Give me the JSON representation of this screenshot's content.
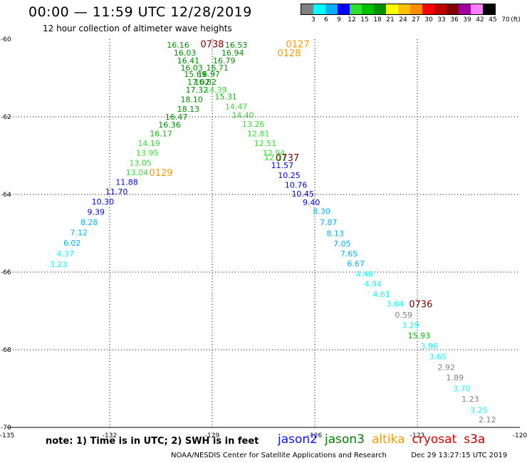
{
  "header": {
    "title": "00:00 — 11:59 UTC 12/28/2019",
    "subtitle": "12 hour collection of altimeter wave heights"
  },
  "legend": {
    "colors": [
      "#808080",
      "#00ffff",
      "#00b0ff",
      "#0000ff",
      "#30e030",
      "#00c000",
      "#009000",
      "#ffff00",
      "#ffc000",
      "#ff8c00",
      "#ff0000",
      "#c00000",
      "#800000",
      "#a000a0",
      "#ff80ff",
      "#000000"
    ],
    "labels": [
      "3",
      "6",
      "9",
      "12",
      "15",
      "18",
      "21",
      "24",
      "27",
      "30",
      "33",
      "36",
      "39",
      "42",
      "45",
      "70",
      "(ft)"
    ]
  },
  "footer": {
    "note": "note: 1) Time is in UTC; 2) SWH is in feet",
    "satellites": [
      {
        "name": "jason2",
        "color": "#1010ff"
      },
      {
        "name": "jason3",
        "color": "#008000"
      },
      {
        "name": "altika",
        "color": "#ff9900"
      },
      {
        "name": "cryosat",
        "color": "#e00000"
      },
      {
        "name": "s3a",
        "color": "#c00000"
      }
    ],
    "credit": "NOAA/NESDIS Center for Satellite Applications and Research",
    "timestamp": "Dec 29 13:27:15 UTC 2019"
  },
  "chart_data": {
    "type": "scatter",
    "xlim": [
      -135,
      -120
    ],
    "ylim": [
      -70,
      -60
    ],
    "x_ticks": [
      -135,
      -132,
      -129,
      -126,
      -123,
      -120
    ],
    "y_ticks": [
      -60,
      -62,
      -64,
      -66,
      -68,
      -70
    ],
    "x_tick_labels": [
      "-135",
      "-132",
      "-129",
      "-126",
      "-123",
      "-120"
    ],
    "y_tick_labels": [
      "-60",
      "-62",
      "-64",
      "-66",
      "-68",
      "-70"
    ],
    "grid": true,
    "points": [
      {
        "x": -130.0,
        "y": -60.15,
        "v": "16.16",
        "c": "#009000"
      },
      {
        "x": -129.8,
        "y": -60.35,
        "v": "16.03",
        "c": "#009000"
      },
      {
        "x": -129.7,
        "y": -60.55,
        "v": "16.41",
        "c": "#009000"
      },
      {
        "x": -129.6,
        "y": -60.73,
        "v": "16.03",
        "c": "#009000"
      },
      {
        "x": -129.5,
        "y": -60.9,
        "v": "15.69",
        "c": "#009000"
      },
      {
        "x": -129.4,
        "y": -61.1,
        "v": "17.02",
        "c": "#009000"
      },
      {
        "x": -129.45,
        "y": -61.3,
        "v": "17.32",
        "c": "#009000"
      },
      {
        "x": -129.6,
        "y": -61.55,
        "v": "18.10",
        "c": "#009000"
      },
      {
        "x": -129.7,
        "y": -61.8,
        "v": "18.13",
        "c": "#009000"
      },
      {
        "x": -130.05,
        "y": -62.0,
        "v": "16.47",
        "c": "#009000"
      },
      {
        "x": -130.25,
        "y": -62.2,
        "v": "16.36",
        "c": "#009000"
      },
      {
        "x": -130.5,
        "y": -62.43,
        "v": "16.17",
        "c": "#00c000"
      },
      {
        "x": -130.85,
        "y": -62.68,
        "v": "14.19",
        "c": "#30e030"
      },
      {
        "x": -130.9,
        "y": -62.93,
        "v": "13.95",
        "c": "#30e030"
      },
      {
        "x": -131.1,
        "y": -63.18,
        "v": "13.05",
        "c": "#30e030"
      },
      {
        "x": -131.2,
        "y": -63.43,
        "v": "13.04",
        "c": "#30e030"
      },
      {
        "x": -131.5,
        "y": -63.68,
        "v": "11.88",
        "c": "#0000ff"
      },
      {
        "x": -131.8,
        "y": -63.93,
        "v": "11.70",
        "c": "#0000ff"
      },
      {
        "x": -132.2,
        "y": -64.18,
        "v": "10.30",
        "c": "#0000ff"
      },
      {
        "x": -132.4,
        "y": -64.45,
        "v": "9.39",
        "c": "#0000ff"
      },
      {
        "x": -132.6,
        "y": -64.72,
        "v": "8.28",
        "c": "#00b0ff"
      },
      {
        "x": -132.9,
        "y": -64.98,
        "v": "7.12",
        "c": "#00b0ff"
      },
      {
        "x": -133.1,
        "y": -65.25,
        "v": "6.02",
        "c": "#00b0ff"
      },
      {
        "x": -133.3,
        "y": -65.52,
        "v": "4.37",
        "c": "#00ffff"
      },
      {
        "x": -133.5,
        "y": -65.8,
        "v": "3.23",
        "c": "#00ffff"
      },
      {
        "x": -128.3,
        "y": -60.15,
        "v": "16.53",
        "c": "#009000"
      },
      {
        "x": -128.4,
        "y": -60.35,
        "v": "16.94",
        "c": "#009000"
      },
      {
        "x": -128.65,
        "y": -60.55,
        "v": "16.79",
        "c": "#009000"
      },
      {
        "x": -128.85,
        "y": -60.73,
        "v": "16.71",
        "c": "#009000"
      },
      {
        "x": -129.1,
        "y": -60.9,
        "v": "16.97",
        "c": "#009000"
      },
      {
        "x": -129.2,
        "y": -61.1,
        "v": "16.82",
        "c": "#009000"
      },
      {
        "x": -128.9,
        "y": -61.3,
        "v": "14.39",
        "c": "#30e030"
      },
      {
        "x": -128.6,
        "y": -61.48,
        "v": "15.31",
        "c": "#00c000"
      },
      {
        "x": -128.3,
        "y": -61.73,
        "v": "14.47",
        "c": "#30e030"
      },
      {
        "x": -128.1,
        "y": -61.95,
        "v": "14.40",
        "c": "#30e030"
      },
      {
        "x": -127.8,
        "y": -62.18,
        "v": "13.26",
        "c": "#30e030"
      },
      {
        "x": -127.65,
        "y": -62.43,
        "v": "12.81",
        "c": "#30e030"
      },
      {
        "x": -127.45,
        "y": -62.68,
        "v": "12.51",
        "c": "#30e030"
      },
      {
        "x": -127.2,
        "y": -62.93,
        "v": "12.94",
        "c": "#30e030"
      },
      {
        "x": -127.15,
        "y": -63.05,
        "v": "12.11",
        "c": "#30e030"
      },
      {
        "x": -126.95,
        "y": -63.25,
        "v": "11.57",
        "c": "#0000ff"
      },
      {
        "x": -126.75,
        "y": -63.5,
        "v": "10.25",
        "c": "#0000ff"
      },
      {
        "x": -126.55,
        "y": -63.75,
        "v": "10.76",
        "c": "#0000ff"
      },
      {
        "x": -126.35,
        "y": -63.98,
        "v": "10.45",
        "c": "#0000ff"
      },
      {
        "x": -126.1,
        "y": -64.2,
        "v": "9.40",
        "c": "#0000ff"
      },
      {
        "x": -125.8,
        "y": -64.43,
        "v": "8.30",
        "c": "#00b0ff"
      },
      {
        "x": -125.6,
        "y": -64.72,
        "v": "7.87",
        "c": "#00b0ff"
      },
      {
        "x": -125.4,
        "y": -65.0,
        "v": "8.13",
        "c": "#00b0ff"
      },
      {
        "x": -125.2,
        "y": -65.27,
        "v": "7.05",
        "c": "#00b0ff"
      },
      {
        "x": -125.0,
        "y": -65.52,
        "v": "7.65",
        "c": "#00b0ff"
      },
      {
        "x": -124.8,
        "y": -65.78,
        "v": "6.67",
        "c": "#00b0ff"
      },
      {
        "x": -124.55,
        "y": -66.05,
        "v": "4.48",
        "c": "#00ffff"
      },
      {
        "x": -124.3,
        "y": -66.3,
        "v": "4.94",
        "c": "#00ffff"
      },
      {
        "x": -124.05,
        "y": -66.57,
        "v": "4.61",
        "c": "#00ffff"
      },
      {
        "x": -123.65,
        "y": -66.82,
        "v": "3.04",
        "c": "#00ffff"
      },
      {
        "x": -123.4,
        "y": -67.1,
        "v": "0.59",
        "c": "#808080"
      },
      {
        "x": -123.2,
        "y": -67.37,
        "v": "3.29",
        "c": "#00ffff"
      },
      {
        "x": -122.95,
        "y": -67.63,
        "v": "15.93",
        "c": "#00c000"
      },
      {
        "x": -122.65,
        "y": -67.9,
        "v": "3.96",
        "c": "#00ffff"
      },
      {
        "x": -122.4,
        "y": -68.17,
        "v": "3.65",
        "c": "#00ffff"
      },
      {
        "x": -122.15,
        "y": -68.45,
        "v": "2.92",
        "c": "#808080"
      },
      {
        "x": -121.9,
        "y": -68.72,
        "v": "1.89",
        "c": "#808080"
      },
      {
        "x": -121.7,
        "y": -69.0,
        "v": "3.70",
        "c": "#00ffff"
      },
      {
        "x": -121.45,
        "y": -69.27,
        "v": "1.23",
        "c": "#808080"
      },
      {
        "x": -121.2,
        "y": -69.55,
        "v": "3.25",
        "c": "#00ffff"
      },
      {
        "x": -120.95,
        "y": -69.8,
        "v": "2.12",
        "c": "#808080"
      }
    ],
    "time_labels": [
      {
        "x": -129.0,
        "y": -60.12,
        "text": "0738",
        "c": "#800000"
      },
      {
        "x": -126.5,
        "y": -60.12,
        "text": "0127",
        "c": "#ff9900"
      },
      {
        "x": -126.75,
        "y": -60.35,
        "text": "0128",
        "c": "#ff9900"
      },
      {
        "x": -126.8,
        "y": -63.05,
        "text": "0737",
        "c": "#800000"
      },
      {
        "x": -130.5,
        "y": -63.43,
        "text": "0129",
        "c": "#ff9900"
      },
      {
        "x": -122.9,
        "y": -66.82,
        "text": "0736",
        "c": "#800000"
      }
    ]
  }
}
